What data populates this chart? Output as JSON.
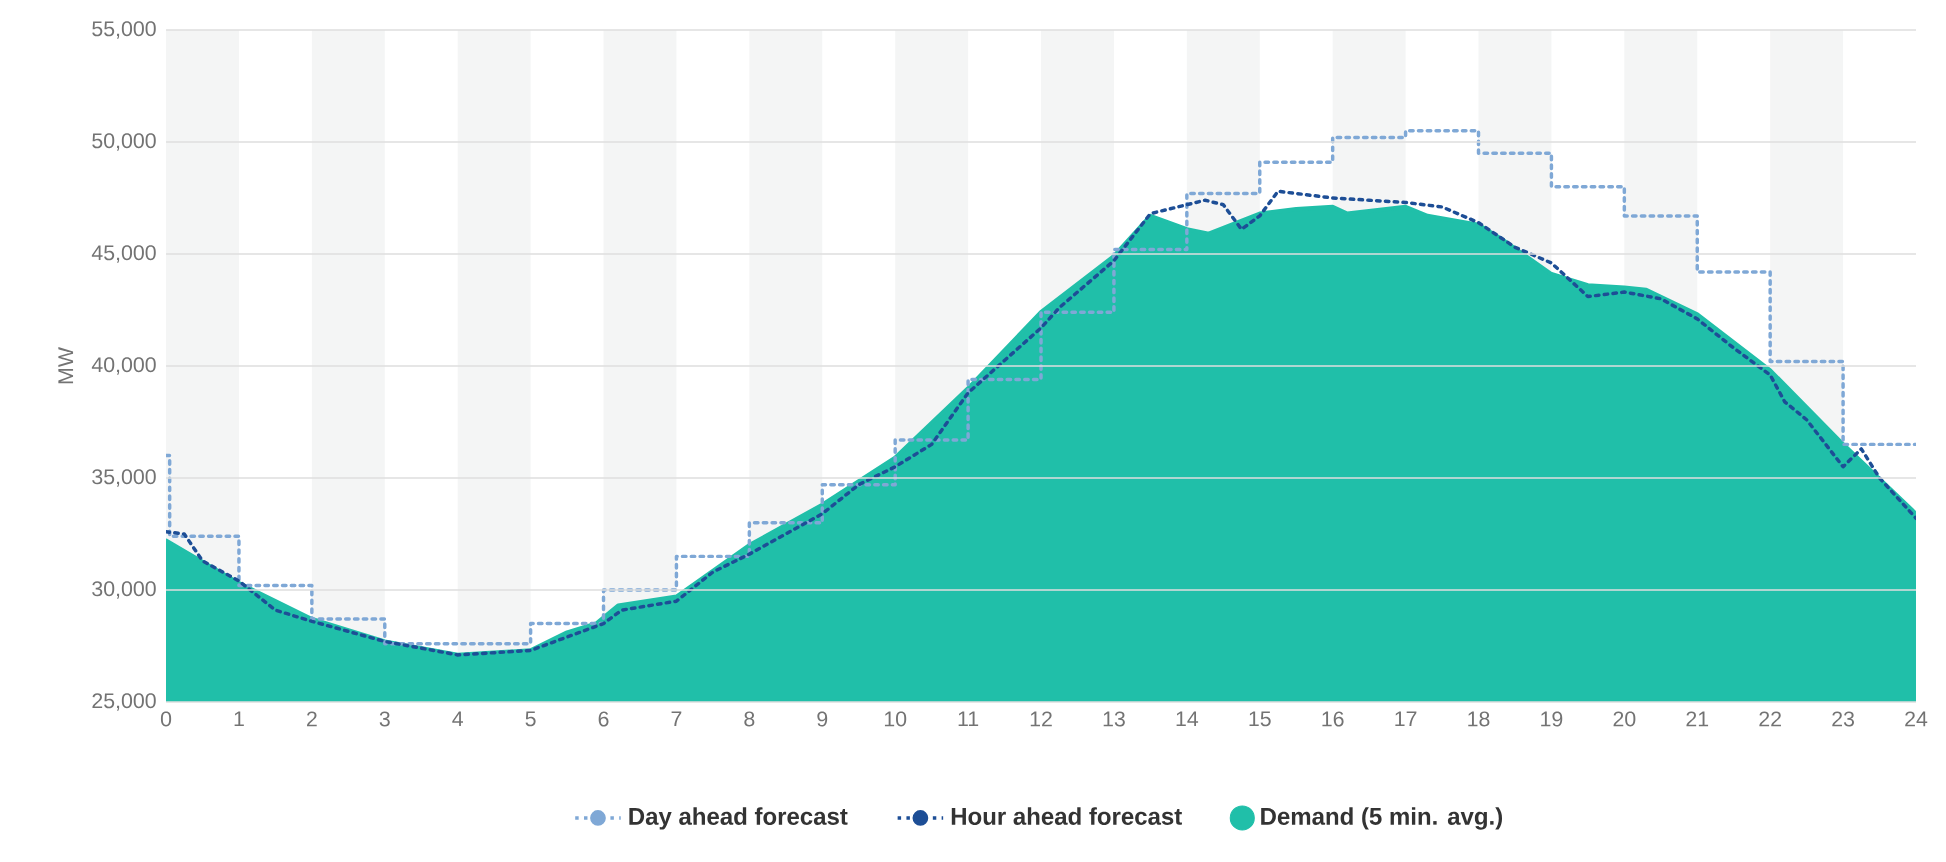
{
  "chart_data": {
    "type": "line",
    "ylabel": "MW",
    "xlim": [
      0,
      24
    ],
    "xticks": [
      0,
      1,
      2,
      3,
      4,
      5,
      6,
      7,
      8,
      9,
      10,
      11,
      12,
      13,
      14,
      15,
      16,
      17,
      18,
      19,
      20,
      21,
      22,
      23,
      24
    ],
    "ylim": [
      25000,
      55000
    ],
    "yticks": [
      {
        "value": 25000,
        "label": "25,000"
      },
      {
        "value": 30000,
        "label": "30,000"
      },
      {
        "value": 35000,
        "label": "35,000"
      },
      {
        "value": 40000,
        "label": "40,000"
      },
      {
        "value": 45000,
        "label": "45,000"
      },
      {
        "value": 50000,
        "label": "50,000"
      },
      {
        "value": 55000,
        "label": "55,000"
      }
    ],
    "grid": "y",
    "legend": "bottom",
    "bands": [
      {
        "axis": "x",
        "from": 0,
        "to": 1,
        "color": "#f4f5f5"
      },
      {
        "axis": "x",
        "from": 2,
        "to": 3,
        "color": "#f4f5f5"
      },
      {
        "axis": "x",
        "from": 4,
        "to": 5,
        "color": "#f4f5f5"
      },
      {
        "axis": "x",
        "from": 6,
        "to": 7,
        "color": "#f4f5f5"
      },
      {
        "axis": "x",
        "from": 8,
        "to": 9,
        "color": "#f4f5f5"
      },
      {
        "axis": "x",
        "from": 10,
        "to": 11,
        "color": "#f4f5f5"
      },
      {
        "axis": "x",
        "from": 12,
        "to": 13,
        "color": "#f4f5f5"
      },
      {
        "axis": "x",
        "from": 14,
        "to": 15,
        "color": "#f4f5f5"
      },
      {
        "axis": "x",
        "from": 16,
        "to": 17,
        "color": "#f4f5f5"
      },
      {
        "axis": "x",
        "from": 18,
        "to": 19,
        "color": "#f4f5f5"
      },
      {
        "axis": "x",
        "from": 20,
        "to": 21,
        "color": "#f4f5f5"
      },
      {
        "axis": "x",
        "from": 22,
        "to": 23,
        "color": "#f4f5f5"
      }
    ],
    "series": [
      {
        "name": "Day ahead forecast",
        "type": "step",
        "color": "#7fa8d6",
        "line_style": "dotted",
        "x": [
          0,
          0.05,
          1,
          2,
          3,
          4,
          5,
          6,
          7,
          8,
          9,
          10,
          11,
          12,
          13,
          14,
          15,
          16,
          17,
          18,
          19,
          20,
          21,
          22,
          23,
          24
        ],
        "values": [
          36000,
          32400,
          30200,
          28700,
          27600,
          27600,
          28500,
          30000,
          31500,
          33000,
          34700,
          36700,
          39400,
          42400,
          45200,
          47700,
          49100,
          50200,
          50500,
          49500,
          48000,
          46700,
          44200,
          40200,
          36500,
          36500
        ]
      },
      {
        "name": "Hour ahead forecast",
        "type": "line",
        "color": "#1d4e96",
        "line_style": "dotted",
        "x": [
          0,
          0.25,
          0.5,
          1,
          1.5,
          2,
          3,
          4,
          5,
          5.5,
          6,
          6.25,
          7,
          7.5,
          8,
          9,
          9.5,
          10,
          10.5,
          11,
          12,
          12.25,
          13,
          13.5,
          14,
          14.25,
          14.5,
          14.75,
          15,
          15.25,
          16,
          16.5,
          17,
          17.5,
          18,
          18.5,
          19,
          19.5,
          20,
          20.5,
          21,
          21.5,
          22,
          22.2,
          22.5,
          23,
          23.25,
          23.5,
          24
        ],
        "values": [
          32600,
          32500,
          31300,
          30400,
          29100,
          28600,
          27700,
          27100,
          27300,
          27900,
          28500,
          29100,
          29500,
          30800,
          31600,
          33400,
          34700,
          35500,
          36500,
          38800,
          41700,
          42600,
          44700,
          46800,
          47200,
          47400,
          47200,
          46100,
          46700,
          47800,
          47500,
          47400,
          47300,
          47100,
          46400,
          45300,
          44600,
          43100,
          43300,
          43000,
          42100,
          40800,
          39600,
          38400,
          37600,
          35500,
          36300,
          35000,
          33200
        ]
      },
      {
        "name": "Demand (5 min. avg.)",
        "type": "area",
        "color": "#20bfa9",
        "line_style": "solid",
        "x": [
          0,
          1,
          2,
          3,
          4,
          5,
          5.5,
          5.9,
          6.2,
          7,
          8,
          9,
          10,
          11,
          12,
          13,
          13.5,
          14,
          14.3,
          15,
          15.5,
          16,
          16.2,
          17,
          17.3,
          18,
          18.3,
          19,
          19.5,
          20,
          20.3,
          21,
          22,
          23,
          24
        ],
        "values": [
          32200,
          30300,
          28700,
          27700,
          27100,
          27300,
          28100,
          28500,
          29300,
          29700,
          32000,
          33800,
          35900,
          39000,
          42400,
          44900,
          46700,
          46100,
          45900,
          46800,
          47000,
          47100,
          46800,
          47100,
          46700,
          46300,
          45700,
          44100,
          43600,
          43500,
          43400,
          42300,
          39800,
          36500,
          33400
        ]
      }
    ]
  }
}
